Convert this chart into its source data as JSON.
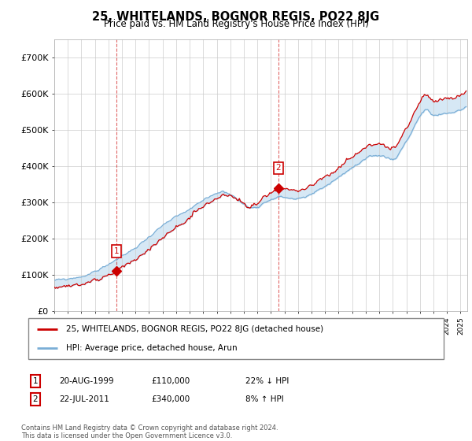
{
  "title": "25, WHITELANDS, BOGNOR REGIS, PO22 8JG",
  "subtitle": "Price paid vs. HM Land Registry's House Price Index (HPI)",
  "ylim": [
    0,
    750000
  ],
  "yticks": [
    0,
    100000,
    200000,
    300000,
    400000,
    500000,
    600000,
    700000
  ],
  "ytick_labels": [
    "£0",
    "£100K",
    "£200K",
    "£300K",
    "£400K",
    "£500K",
    "£600K",
    "£700K"
  ],
  "legend_line1": "25, WHITELANDS, BOGNOR REGIS, PO22 8JG (detached house)",
  "legend_line2": "HPI: Average price, detached house, Arun",
  "footer": "Contains HM Land Registry data © Crown copyright and database right 2024.\nThis data is licensed under the Open Government Licence v3.0.",
  "sale1_label": "1",
  "sale1_date": "20-AUG-1999",
  "sale1_price": "£110,000",
  "sale1_hpi": "22% ↓ HPI",
  "sale2_label": "2",
  "sale2_date": "22-JUL-2011",
  "sale2_price": "£340,000",
  "sale2_hpi": "8% ↑ HPI",
  "red_color": "#cc0000",
  "blue_color": "#7aaed6",
  "fill_color": "#d6e8f5",
  "background_color": "#ffffff",
  "grid_color": "#cccccc",
  "sale1_x": 1999.6,
  "sale1_price_val": 110000,
  "sale2_x": 2011.55,
  "sale2_price_val": 340000
}
